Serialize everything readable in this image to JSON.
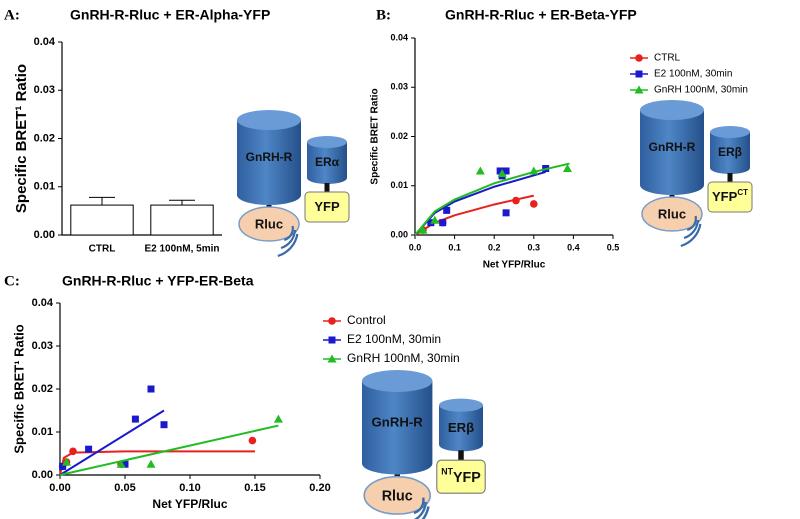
{
  "chart_data": [
    {
      "type": "bar",
      "panel": "A:",
      "title": "GnRH-R-Rluc + ER-Alpha-YFP",
      "ylabel": "Specific BRET¹ Ratio",
      "categories": [
        "CTRL",
        "E2 100nM, 5min"
      ],
      "values": [
        0.0062,
        0.0062
      ],
      "errors": [
        0.0016,
        0.001
      ],
      "color": "#ffffff",
      "ylim": [
        0,
        0.04
      ],
      "yticks": [
        {
          "value": 0,
          "label": "0.00"
        },
        0.01,
        0.02,
        0.03,
        0.04
      ],
      "diagram": {
        "receptor": "GnRH-R",
        "donor": "Rluc",
        "er": "ERα",
        "acceptor": "YFP"
      }
    },
    {
      "type": "scatter",
      "panel": "B:",
      "title": "GnRH-R-Rluc + ER-Beta-YFP",
      "ylabel": "Specific BRET Ratio",
      "xlabel": "Net YFP/Rluc",
      "xlim": [
        0,
        0.5
      ],
      "xticks": [
        {
          "value": 0,
          "label": "0.0"
        },
        0.1,
        0.2,
        0.3,
        0.4,
        0.5
      ],
      "ylim": [
        0,
        0.04
      ],
      "yticks": [
        {
          "value": 0,
          "label": "0.00"
        },
        0.01,
        0.02,
        0.03,
        0.04
      ],
      "series": [
        {
          "name": "CTRL",
          "color": "#e8201e",
          "marker": "circle",
          "x": [
            0.02,
            0.07,
            0.255,
            0.3
          ],
          "values": [
            0.001,
            0.0025,
            0.007,
            0.0063
          ],
          "fit": {
            "x": [
              0,
              0.05,
              0.1,
              0.2,
              0.3
            ],
            "y": [
              0,
              0.0025,
              0.004,
              0.0062,
              0.008
            ]
          }
        },
        {
          "name": "E2 100nM, 30min",
          "color": "#1a1acc",
          "marker": "square",
          "x": [
            0.04,
            0.07,
            0.08,
            0.215,
            0.22,
            0.23,
            0.23,
            0.33
          ],
          "values": [
            0.0025,
            0.0025,
            0.005,
            0.013,
            0.012,
            0.013,
            0.0045,
            0.0135
          ],
          "fit": {
            "x": [
              0,
              0.05,
              0.1,
              0.2,
              0.33
            ],
            "y": [
              0,
              0.0045,
              0.0068,
              0.0098,
              0.0128
            ]
          }
        },
        {
          "name": "GnRH 100nM, 30min",
          "color": "#22bb22",
          "marker": "triangle",
          "x": [
            0.02,
            0.05,
            0.165,
            0.22,
            0.3,
            0.385
          ],
          "values": [
            0.001,
            0.003,
            0.013,
            0.0125,
            0.013,
            0.0135
          ],
          "fit": {
            "x": [
              0,
              0.05,
              0.1,
              0.2,
              0.3,
              0.39
            ],
            "y": [
              0,
              0.0048,
              0.0072,
              0.0105,
              0.0128,
              0.0145
            ]
          }
        }
      ],
      "diagram": {
        "receptor": "GnRH-R",
        "donor": "Rluc",
        "er": "ERβ",
        "acceptor": "YFP",
        "acceptor_sup_after": "CT"
      }
    },
    {
      "type": "scatter",
      "panel": "C:",
      "title": "GnRH-R-Rluc + YFP-ER-Beta",
      "ylabel": "Specific BRET¹ Ratio",
      "xlabel": "Net YFP/Rluc",
      "xlim": [
        0,
        0.2
      ],
      "xticks": [
        {
          "value": 0,
          "label": "0.00"
        },
        0.05,
        {
          "value": 0.1,
          "label": "0.10"
        },
        0.15,
        {
          "value": 0.2,
          "label": "0.20"
        }
      ],
      "ylim": [
        0,
        0.04
      ],
      "yticks": [
        {
          "value": 0,
          "label": "0.00"
        },
        0.01,
        0.02,
        0.03,
        0.04
      ],
      "series": [
        {
          "name": "Control",
          "color": "#e8201e",
          "marker": "circle",
          "x": [
            0.002,
            0.005,
            0.01,
            0.047,
            0.148
          ],
          "values": [
            0.002,
            0.003,
            0.0055,
            0.0025,
            0.008
          ],
          "fit": {
            "x": [
              0,
              0.003,
              0.01,
              0.05,
              0.15
            ],
            "y": [
              0,
              0.004,
              0.0052,
              0.0055,
              0.0055
            ]
          }
        },
        {
          "name": "E2 100nM, 30min",
          "color": "#1a1acc",
          "marker": "square",
          "x": [
            0.002,
            0.022,
            0.05,
            0.058,
            0.07,
            0.08
          ],
          "values": [
            0.002,
            0.006,
            0.0025,
            0.013,
            0.02,
            0.0117
          ],
          "fit": {
            "x": [
              0,
              0.08
            ],
            "y": [
              0,
              0.015
            ]
          }
        },
        {
          "name": "GnRH 100nM, 30min",
          "color": "#22bb22",
          "marker": "triangle",
          "x": [
            0.005,
            0.047,
            0.07,
            0.168
          ],
          "values": [
            0.003,
            0.0025,
            0.0025,
            0.013
          ],
          "fit": {
            "x": [
              0,
              0.168
            ],
            "y": [
              0,
              0.0115
            ]
          }
        }
      ],
      "diagram": {
        "receptor": "GnRH-R",
        "donor": "Rluc",
        "er": "ERβ",
        "acceptor": "YFP",
        "acceptor_sup_before": "NT"
      }
    }
  ]
}
